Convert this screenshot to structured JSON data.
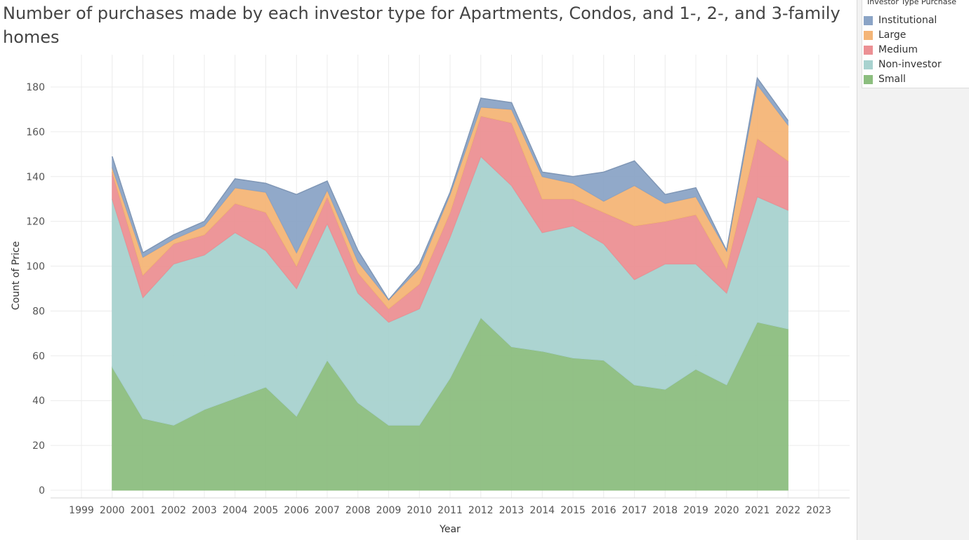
{
  "chart_data": {
    "type": "area",
    "stacked": true,
    "title": "Number of purchases made by each investor type for Apartments, Condos, and 1-, 2-, and 3-family homes",
    "xlabel": "Year",
    "ylabel": "Count of Price",
    "x_ticks": [
      "1999",
      "2000",
      "2001",
      "2002",
      "2003",
      "2004",
      "2005",
      "2006",
      "2007",
      "2008",
      "2009",
      "2010",
      "2011",
      "2012",
      "2013",
      "2014",
      "2015",
      "2016",
      "2017",
      "2018",
      "2019",
      "2020",
      "2021",
      "2022",
      "2023"
    ],
    "y_ticks": [
      0,
      20,
      40,
      60,
      80,
      100,
      120,
      140,
      160,
      180
    ],
    "ylim": [
      0,
      190
    ],
    "grid": true,
    "legend_position": "top-right",
    "legend_title": "Investor Type Purchase",
    "x": [
      2000,
      2001,
      2002,
      2003,
      2004,
      2005,
      2006,
      2007,
      2008,
      2009,
      2010,
      2011,
      2012,
      2013,
      2014,
      2015,
      2016,
      2017,
      2018,
      2019,
      2020,
      2021,
      2022
    ],
    "series": [
      {
        "name": "Small",
        "color": "#8cbe7f",
        "values": [
          55,
          32,
          29,
          36,
          41,
          46,
          33,
          58,
          39,
          29,
          29,
          50,
          77,
          64,
          62,
          59,
          58,
          47,
          45,
          54,
          47,
          75,
          72
        ]
      },
      {
        "name": "Non-investor",
        "color": "#a8d2cf",
        "values": [
          75,
          54,
          72,
          69,
          74,
          61,
          57,
          61,
          49,
          46,
          52,
          63,
          72,
          72,
          53,
          59,
          52,
          47,
          56,
          47,
          41,
          56,
          53
        ]
      },
      {
        "name": "Medium",
        "color": "#ec9094",
        "values": [
          12,
          10,
          9,
          9,
          13,
          17,
          10,
          12,
          9,
          6,
          11,
          11,
          18,
          28,
          15,
          12,
          14,
          24,
          19,
          22,
          11,
          26,
          22
        ]
      },
      {
        "name": "Large",
        "color": "#f4b577",
        "values": [
          2,
          8,
          2,
          4,
          7,
          9,
          6,
          3,
          5,
          4,
          7,
          8,
          4,
          6,
          10,
          7,
          5,
          18,
          8,
          8,
          8,
          24,
          16
        ]
      },
      {
        "name": "Institutional",
        "color": "#8ba4c6",
        "values": [
          5,
          2,
          2,
          2,
          4,
          4,
          26,
          4,
          5,
          0,
          2,
          1,
          4,
          3,
          2,
          3,
          13,
          11,
          4,
          4,
          0,
          3,
          2
        ]
      }
    ],
    "legend_order": [
      "Institutional",
      "Large",
      "Medium",
      "Non-investor",
      "Small"
    ]
  }
}
